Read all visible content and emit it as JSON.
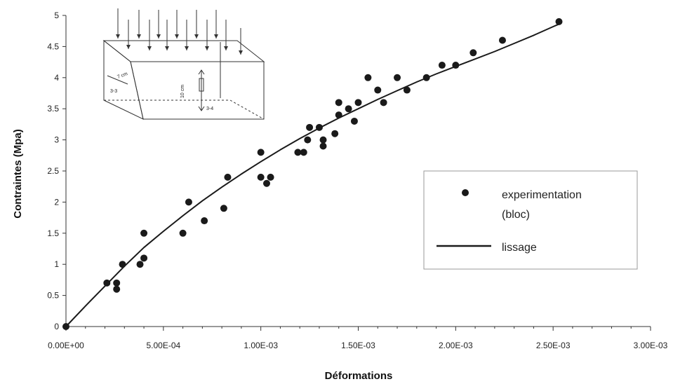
{
  "chart_data": {
    "type": "scatter",
    "xlabel": "Déformations",
    "ylabel": "Contraintes (Mpa)",
    "xlim": [
      0,
      0.003
    ],
    "ylim": [
      0,
      5
    ],
    "x_ticks": [
      "0.00E+00",
      "5.00E-04",
      "1.00E-03",
      "1.50E-03",
      "2.00E-03",
      "2.50E-03",
      "3.00E-03"
    ],
    "y_ticks": [
      "0",
      "0.5",
      "1",
      "1.5",
      "2",
      "2.5",
      "3",
      "3.5",
      "4",
      "4.5",
      "5"
    ],
    "grid": false,
    "legend_position": "right",
    "series": [
      {
        "name": "experimentation (bloc)",
        "legend_lines": [
          "experimentation",
          "(bloc)"
        ],
        "kind": "scatter",
        "color": "#1a1a1a",
        "points": [
          [
            0.0,
            0.0
          ],
          [
            0.00021,
            0.7
          ],
          [
            0.00026,
            0.6
          ],
          [
            0.00026,
            0.7
          ],
          [
            0.00029,
            1.0
          ],
          [
            0.00038,
            1.0
          ],
          [
            0.0004,
            1.1
          ],
          [
            0.0004,
            1.5
          ],
          [
            0.0006,
            1.5
          ],
          [
            0.00063,
            2.0
          ],
          [
            0.00071,
            1.7
          ],
          [
            0.00081,
            1.9
          ],
          [
            0.00083,
            2.4
          ],
          [
            0.001,
            2.8
          ],
          [
            0.001,
            2.4
          ],
          [
            0.00103,
            2.3
          ],
          [
            0.00105,
            2.4
          ],
          [
            0.00119,
            2.8
          ],
          [
            0.00122,
            2.8
          ],
          [
            0.00124,
            3.0
          ],
          [
            0.00125,
            3.2
          ],
          [
            0.0013,
            3.2
          ],
          [
            0.00132,
            3.0
          ],
          [
            0.00132,
            2.9
          ],
          [
            0.00138,
            3.1
          ],
          [
            0.0014,
            3.4
          ],
          [
            0.0014,
            3.6
          ],
          [
            0.00145,
            3.5
          ],
          [
            0.00148,
            3.3
          ],
          [
            0.0015,
            3.6
          ],
          [
            0.00155,
            4.0
          ],
          [
            0.0016,
            3.8
          ],
          [
            0.00163,
            3.6
          ],
          [
            0.0017,
            4.0
          ],
          [
            0.00175,
            3.8
          ],
          [
            0.00185,
            4.0
          ],
          [
            0.00193,
            4.2
          ],
          [
            0.002,
            4.2
          ],
          [
            0.00209,
            4.4
          ],
          [
            0.00224,
            4.6
          ],
          [
            0.00253,
            4.9
          ]
        ]
      },
      {
        "name": "lissage",
        "kind": "line",
        "color": "#1a1a1a",
        "points": [
          [
            0.0,
            0.0
          ],
          [
            0.0001,
            0.33
          ],
          [
            0.0002,
            0.65
          ],
          [
            0.0003,
            0.97
          ],
          [
            0.0004,
            1.27
          ],
          [
            0.0005,
            1.53
          ],
          [
            0.0006,
            1.78
          ],
          [
            0.0007,
            2.02
          ],
          [
            0.0008,
            2.24
          ],
          [
            0.0009,
            2.45
          ],
          [
            0.001,
            2.65
          ],
          [
            0.0011,
            2.84
          ],
          [
            0.0012,
            3.02
          ],
          [
            0.0013,
            3.19
          ],
          [
            0.0014,
            3.35
          ],
          [
            0.0015,
            3.5
          ],
          [
            0.0016,
            3.65
          ],
          [
            0.0017,
            3.79
          ],
          [
            0.0018,
            3.93
          ],
          [
            0.0019,
            4.06
          ],
          [
            0.002,
            4.18
          ],
          [
            0.0021,
            4.3
          ],
          [
            0.0022,
            4.42
          ],
          [
            0.0023,
            4.55
          ],
          [
            0.0024,
            4.68
          ],
          [
            0.0025,
            4.82
          ],
          [
            0.00253,
            4.86
          ]
        ]
      }
    ],
    "inset": {
      "type": "diagram",
      "labels": [
        "7 cm",
        "3-3",
        "10 cm",
        "3-4"
      ]
    }
  }
}
